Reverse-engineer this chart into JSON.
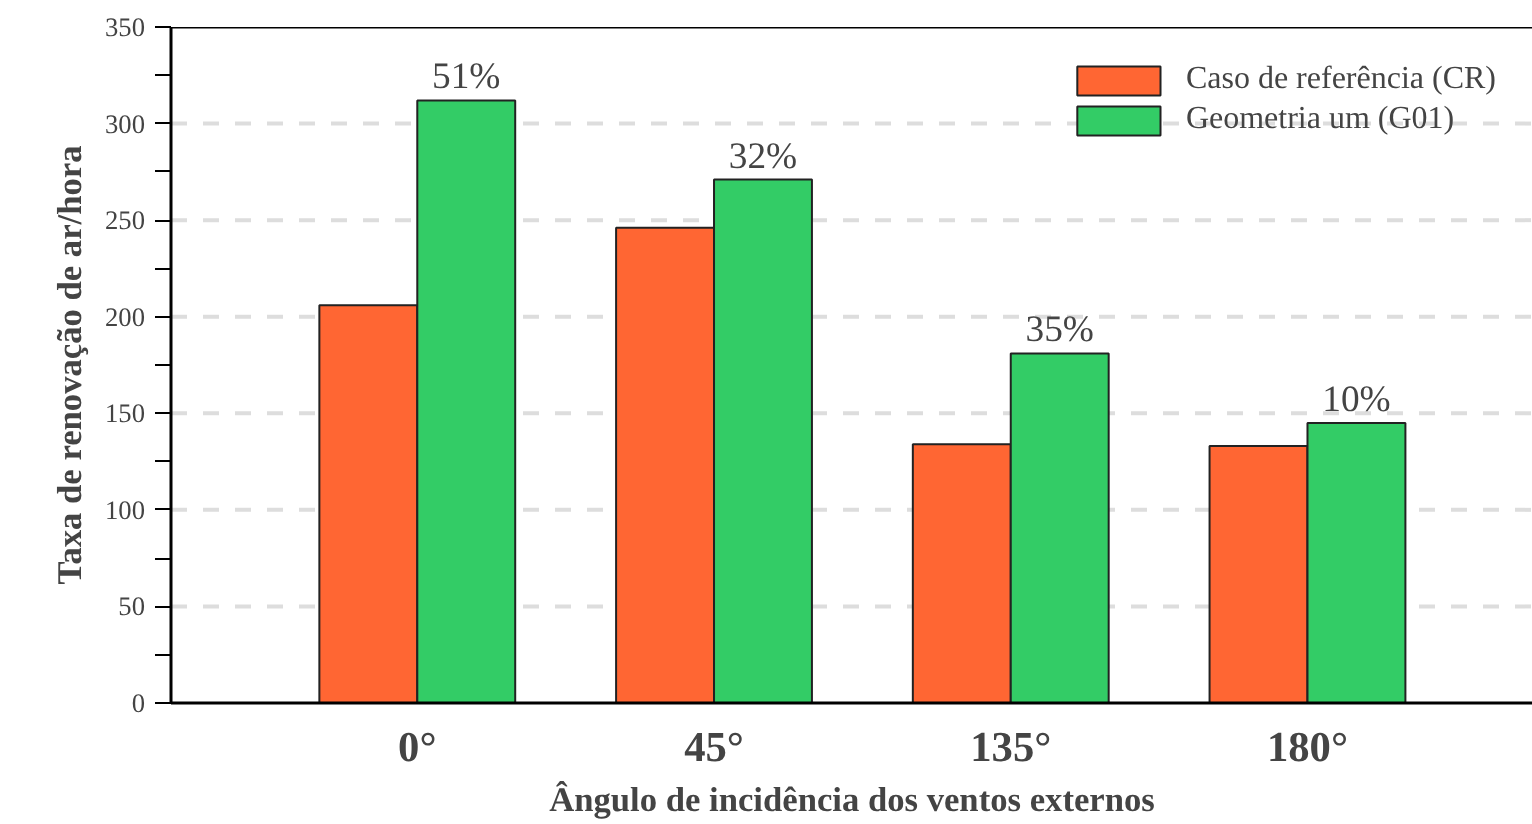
{
  "chart_data": {
    "type": "bar",
    "xlabel": "Ângulo de incidência dos ventos externos",
    "ylabel": "Taxa de renovação de ar/hora",
    "categories": [
      "0°",
      "45°",
      "135°",
      "180°"
    ],
    "series": [
      {
        "name": "Caso de referência (CR)",
        "color": "#ff6633",
        "values": [
          206,
          246,
          134,
          133
        ]
      },
      {
        "name": "Geometria um (G01)",
        "color": "#33cc66",
        "values": [
          312,
          271,
          181,
          145
        ]
      }
    ],
    "annotations": [
      {
        "text": "51%",
        "x": "0°",
        "y": 312
      },
      {
        "text": "32%",
        "x": "45°",
        "y": 271
      },
      {
        "text": "35%",
        "x": "135°",
        "y": 181
      },
      {
        "text": "10%",
        "x": "180°",
        "y": 145
      }
    ],
    "ylim": [
      0,
      350
    ],
    "yticks": [
      0,
      {
        "value": 25,
        "label": null
      },
      50,
      {
        "value": 75,
        "label": null
      },
      100,
      {
        "value": 125,
        "label": null
      },
      150,
      {
        "value": 175,
        "label": null
      },
      200,
      {
        "value": 225,
        "label": null
      },
      250,
      {
        "value": 275,
        "label": null
      },
      300,
      {
        "value": 325,
        "label": null
      },
      350
    ],
    "grid": "y",
    "legend": "top right"
  }
}
